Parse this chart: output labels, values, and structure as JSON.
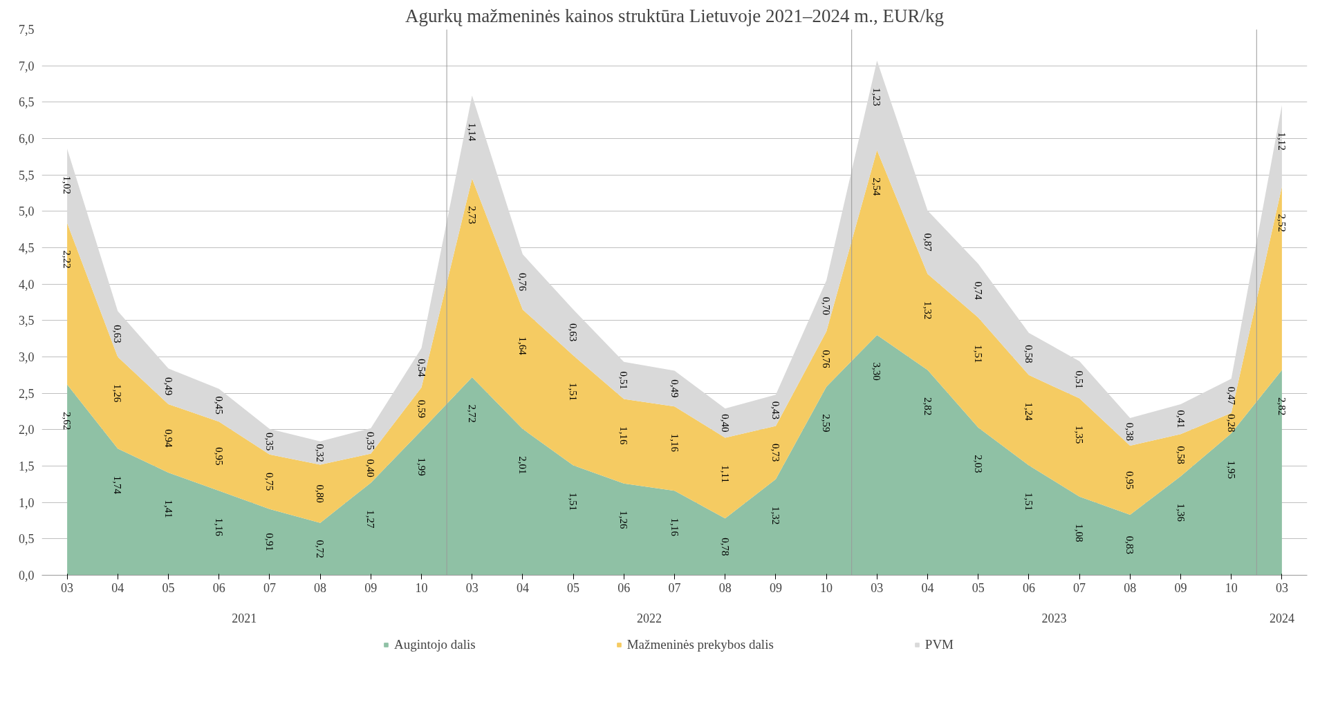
{
  "chart_data": {
    "type": "area",
    "stacked": true,
    "title": "Agurkų mažmeninės kainos struktūra Lietuvoje 2021–2024 m., EUR/kg",
    "categories": [
      "03",
      "04",
      "05",
      "06",
      "07",
      "08",
      "09",
      "10",
      "03",
      "04",
      "05",
      "06",
      "07",
      "08",
      "09",
      "10",
      "03",
      "04",
      "05",
      "06",
      "07",
      "08",
      "09",
      "10",
      "03"
    ],
    "annotations": [
      "2021",
      "2022",
      "2023",
      "2024"
    ],
    "series": [
      {
        "name": "Augintojo dalis",
        "color": "#8fc1a5",
        "values": [
          2.62,
          1.74,
          1.41,
          1.16,
          0.91,
          0.72,
          1.27,
          1.99,
          2.72,
          2.01,
          1.51,
          1.26,
          1.16,
          0.78,
          1.32,
          2.59,
          3.3,
          2.82,
          2.03,
          1.51,
          1.08,
          0.83,
          1.36,
          1.95,
          2.82
        ],
        "value_labels": [
          "2,62",
          "1,74",
          "1,41",
          "1,16",
          "0,91",
          "0,72",
          "1,27",
          "1,99",
          "2,72",
          "2,01",
          "1,51",
          "1,26",
          "1,16",
          "0,78",
          "1,32",
          "2,59",
          "3,30",
          "2,82",
          "2,03",
          "1,51",
          "1,08",
          "0,83",
          "1,36",
          "1,95",
          "2,82"
        ]
      },
      {
        "name": "Mažmeninės prekybos dalis",
        "color": "#f5cb62",
        "values": [
          2.22,
          1.26,
          0.94,
          0.95,
          0.75,
          0.8,
          0.4,
          0.59,
          2.73,
          1.64,
          1.51,
          1.16,
          1.16,
          1.11,
          0.73,
          0.76,
          2.54,
          1.32,
          1.51,
          1.24,
          1.35,
          0.95,
          0.58,
          0.28,
          2.52
        ],
        "value_labels": [
          "2,22",
          "1,26",
          "0,94",
          "0,95",
          "0,75",
          "0,80",
          "0,40",
          "0,59",
          "2,73",
          "1,64",
          "1,51",
          "1,16",
          "1,16",
          "1,11",
          "0,73",
          "0,76",
          "2,54",
          "1,32",
          "1,51",
          "1,24",
          "1,35",
          "0,95",
          "0,58",
          "0,28",
          "2,52"
        ]
      },
      {
        "name": "PVM",
        "color": "#d9d9d9",
        "values": [
          1.02,
          0.63,
          0.49,
          0.45,
          0.35,
          0.32,
          0.35,
          0.54,
          1.14,
          0.76,
          0.63,
          0.51,
          0.49,
          0.4,
          0.43,
          0.7,
          1.23,
          0.87,
          0.74,
          0.58,
          0.51,
          0.38,
          0.41,
          0.47,
          1.12
        ],
        "value_labels": [
          "1,02",
          "0,63",
          "0,49",
          "0,45",
          "0,35",
          "0,32",
          "0,35",
          "0,54",
          "1,14",
          "0,76",
          "0,63",
          "0,51",
          "0,49",
          "0,40",
          "0,43",
          "0,70",
          "1,23",
          "0,87",
          "0,74",
          "0,58",
          "0,51",
          "0,38",
          "0,41",
          "0,47",
          "1,12"
        ]
      }
    ],
    "ylim": [
      0,
      7.5
    ],
    "yticks": [
      {
        "value": 0,
        "label": "0,0"
      },
      {
        "value": 0.5,
        "label": "0,5"
      },
      {
        "value": 1,
        "label": "1,0"
      },
      {
        "value": 1.5,
        "label": "1,5"
      },
      {
        "value": 2,
        "label": "2,0"
      },
      {
        "value": 2.5,
        "label": "2,5"
      },
      {
        "value": 3,
        "label": "3,0"
      },
      {
        "value": 3.5,
        "label": "3,5"
      },
      {
        "value": 4,
        "label": "4,0"
      },
      {
        "value": 4.5,
        "label": "4,5"
      },
      {
        "value": 5,
        "label": "5,0"
      },
      {
        "value": 5.5,
        "label": "5,5"
      },
      {
        "value": 6,
        "label": "6,0"
      },
      {
        "value": 6.5,
        "label": "6,5"
      },
      {
        "value": 7,
        "label": "7,0"
      },
      {
        "value": 7.5,
        "label": "7,5"
      }
    ],
    "grid": "y",
    "legend": "bottom"
  }
}
